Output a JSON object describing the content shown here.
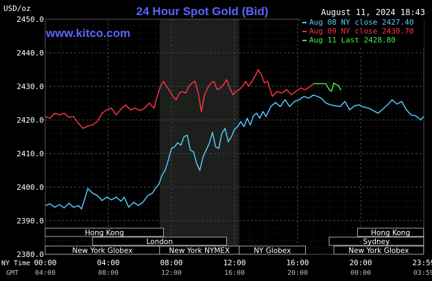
{
  "header": {
    "unit": "USD/oz",
    "title": "24 Hour Spot Gold (Bid)",
    "timestamp": "August 11, 2024 18:43",
    "website": "www.kitco.com"
  },
  "legend": [
    {
      "text": "Aug 08 NY close 2427.40",
      "color": "#55ccff"
    },
    {
      "text": "Aug 09 NY close 2430.70",
      "color": "#ff3344"
    },
    {
      "text": "Aug 11 Last 2428.80",
      "color": "#44ee44"
    }
  ],
  "row_labels": {
    "ny_time": "NY Time",
    "gmt": "GMT"
  },
  "chart_data": {
    "type": "line",
    "title": "24 Hour Spot Gold (Bid)",
    "ylabel": "USD/oz",
    "ylim": [
      2380,
      2450
    ],
    "yticks": [
      "2380.0",
      "2390.0",
      "2400.0",
      "2410.0",
      "2420.0",
      "2430.0",
      "2440.0",
      "2450.0"
    ],
    "x_hours_range": [
      0,
      24
    ],
    "xticks_ny": [
      "00:00",
      "04:00",
      "08:00",
      "12:00",
      "16:00",
      "20:00",
      "23:59"
    ],
    "xticks_gmt": [
      "04:00",
      "08:00",
      "12:00",
      "16:00",
      "20:00",
      "00:00",
      "03:59"
    ],
    "grid": true,
    "legend_position": "top-right",
    "highlight_band_hours": [
      7.25,
      12.3
    ],
    "sessions": [
      {
        "label": "Hong Kong",
        "start": 0,
        "end": 7.5,
        "row": 0
      },
      {
        "label": "Hong Kong",
        "start": 19.8,
        "end": 23.99,
        "row": 0
      },
      {
        "label": "London",
        "start": 3,
        "end": 11.5,
        "row": 1
      },
      {
        "label": "Sydney",
        "start": 18,
        "end": 23.99,
        "row": 1
      },
      {
        "label": "New York Globex",
        "start": 0,
        "end": 7.25,
        "row": 2
      },
      {
        "label": "New York NYMEX",
        "start": 7.25,
        "end": 12.3,
        "row": 2
      },
      {
        "label": "NY Globex",
        "start": 12.3,
        "end": 16.5,
        "row": 2
      },
      {
        "label": "New York Globex",
        "start": 18.3,
        "end": 23.99,
        "row": 2
      }
    ],
    "series": [
      {
        "name": "Aug 08 NY close 2427.40",
        "color": "#55ccff",
        "x": [
          0,
          0.3,
          0.6,
          0.9,
          1.2,
          1.5,
          1.8,
          2.1,
          2.3,
          2.5,
          2.7,
          3.0,
          3.3,
          3.6,
          3.9,
          4.2,
          4.5,
          4.8,
          5.0,
          5.3,
          5.6,
          5.9,
          6.2,
          6.5,
          6.8,
          7.0,
          7.2,
          7.4,
          7.6,
          7.8,
          8.0,
          8.2,
          8.4,
          8.6,
          8.8,
          9.0,
          9.2,
          9.4,
          9.6,
          9.8,
          10.0,
          10.2,
          10.4,
          10.6,
          10.8,
          11.0,
          11.2,
          11.4,
          11.6,
          11.8,
          12.0,
          12.2,
          12.4,
          12.6,
          12.8,
          13.0,
          13.2,
          13.4,
          13.6,
          13.8,
          14.0,
          14.3,
          14.6,
          14.9,
          15.2,
          15.5,
          15.8,
          16.1,
          16.4,
          16.7,
          16.99,
          17.2,
          17.5,
          17.8,
          18.1,
          18.4,
          18.7,
          19.0,
          19.3,
          19.6,
          19.9,
          20.2,
          20.5,
          20.8,
          21.1,
          21.4,
          21.7,
          22.0,
          22.3,
          22.6,
          22.9,
          23.2,
          23.5,
          23.8,
          23.99
        ],
        "y": [
          2394.5,
          2395.0,
          2394.0,
          2394.8,
          2393.8,
          2395.2,
          2394.0,
          2394.5,
          2393.5,
          2396.5,
          2399.6,
          2398.2,
          2397.5,
          2396.0,
          2397.0,
          2396.2,
          2397.0,
          2395.8,
          2397.0,
          2394.0,
          2395.5,
          2394.5,
          2395.5,
          2397.5,
          2398.2,
          2399.8,
          2400.8,
          2403.5,
          2405.0,
          2408.0,
          2411.5,
          2412.0,
          2413.2,
          2412.5,
          2415.0,
          2415.5,
          2411.0,
          2410.5,
          2407.0,
          2405.0,
          2409.0,
          2411.0,
          2413.0,
          2416.3,
          2412.0,
          2411.5,
          2416.0,
          2417.5,
          2413.5,
          2415.0,
          2417.2,
          2418.0,
          2419.5,
          2418.0,
          2420.5,
          2418.5,
          2421.2,
          2422.0,
          2420.5,
          2422.5,
          2421.0,
          2424.0,
          2425.2,
          2424.0,
          2426.0,
          2424.0,
          2425.5,
          2426.0,
          2427.0,
          2426.5,
          2427.4,
          2427.1,
          2426.5,
          2425.0,
          2424.5,
          2424.2,
          2424.0,
          2425.5,
          2423.0,
          2424.2,
          2424.5,
          2423.8,
          2423.5,
          2422.8,
          2422.0,
          2423.2,
          2424.5,
          2426.0,
          2424.7,
          2425.5,
          2423.0,
          2421.5,
          2421.2,
          2420.0,
          2421.0
        ]
      },
      {
        "name": "Aug 09 NY close 2430.70",
        "color": "#ff3344",
        "x": [
          0,
          0.3,
          0.6,
          0.9,
          1.2,
          1.5,
          1.8,
          2.1,
          2.4,
          2.7,
          3.0,
          3.3,
          3.6,
          3.9,
          4.2,
          4.5,
          4.8,
          5.1,
          5.4,
          5.7,
          6.0,
          6.3,
          6.6,
          6.9,
          7.1,
          7.3,
          7.5,
          7.7,
          7.9,
          8.1,
          8.3,
          8.5,
          8.7,
          8.9,
          9.1,
          9.3,
          9.5,
          9.7,
          9.9,
          10.1,
          10.3,
          10.5,
          10.7,
          10.9,
          11.1,
          11.3,
          11.5,
          11.7,
          11.9,
          12.1,
          12.3,
          12.5,
          12.7,
          12.9,
          13.1,
          13.3,
          13.5,
          13.7,
          13.9,
          14.1,
          14.4,
          14.7,
          15.0,
          15.3,
          15.6,
          15.9,
          16.2,
          16.5,
          16.8,
          16.99
        ],
        "y": [
          2421.0,
          2420.5,
          2422.0,
          2421.5,
          2422.0,
          2420.8,
          2421.0,
          2419.0,
          2417.5,
          2418.2,
          2418.5,
          2419.5,
          2422.0,
          2423.0,
          2423.5,
          2421.5,
          2423.2,
          2424.5,
          2423.0,
          2423.5,
          2422.8,
          2423.5,
          2425.0,
          2423.5,
          2427.0,
          2430.0,
          2431.5,
          2430.0,
          2428.5,
          2427.0,
          2426.0,
          2428.0,
          2428.5,
          2428.0,
          2430.0,
          2431.0,
          2431.5,
          2428.0,
          2422.5,
          2427.5,
          2429.5,
          2431.0,
          2431.5,
          2429.0,
          2429.5,
          2430.5,
          2432.0,
          2429.5,
          2427.5,
          2428.5,
          2429.0,
          2430.0,
          2431.5,
          2430.0,
          2431.5,
          2433.0,
          2435.0,
          2433.5,
          2431.0,
          2431.5,
          2427.0,
          2428.5,
          2428.0,
          2429.0,
          2427.5,
          2428.5,
          2429.5,
          2429.0,
          2430.0,
          2430.7
        ]
      },
      {
        "name": "Aug 11 Last 2428.80",
        "color": "#44ee44",
        "x": [
          17.0,
          17.6,
          17.8,
          18.0,
          18.15,
          18.3,
          18.45,
          18.6,
          18.75
        ],
        "y": [
          2430.8,
          2430.8,
          2430.8,
          2429.0,
          2428.5,
          2431.0,
          2430.5,
          2430.2,
          2428.8
        ]
      }
    ]
  }
}
